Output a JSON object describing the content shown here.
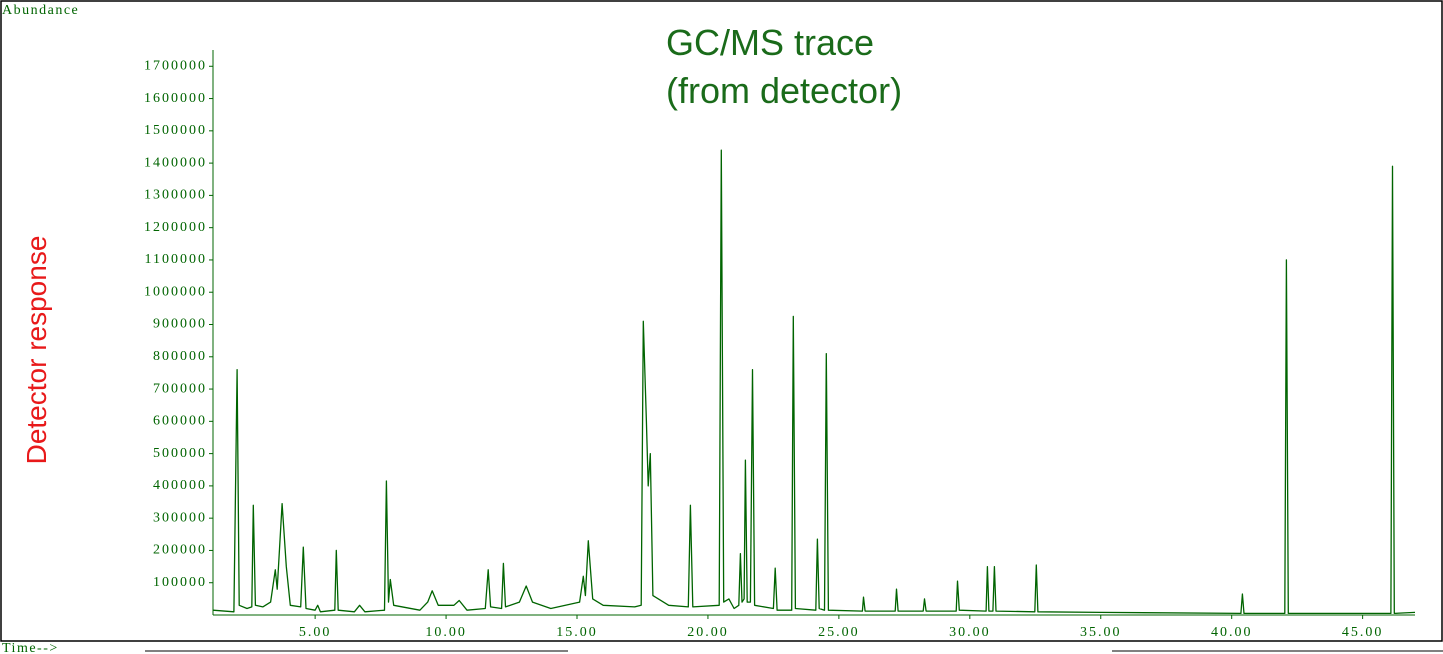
{
  "chart_data": {
    "type": "line",
    "title": [
      "GC/MS trace",
      "(from detector)"
    ],
    "ylabel": "Detector response",
    "ylabel_top": "Abundance",
    "xlabel": "Time-->",
    "x": [
      1.1,
      1.9,
      2.02,
      2.1,
      2.4,
      2.58,
      2.64,
      2.72,
      3.0,
      3.3,
      3.48,
      3.55,
      3.74,
      3.9,
      4.05,
      4.45,
      4.55,
      4.65,
      5.0,
      5.1,
      5.2,
      5.75,
      5.81,
      5.88,
      6.5,
      6.7,
      6.9,
      7.65,
      7.72,
      7.8,
      7.87,
      8.0,
      9.0,
      9.3,
      9.47,
      9.7,
      10.3,
      10.5,
      10.8,
      11.5,
      11.61,
      11.7,
      12.12,
      12.19,
      12.27,
      12.8,
      13.06,
      13.3,
      14.0,
      15.1,
      15.24,
      15.32,
      15.43,
      15.6,
      16.0,
      17.2,
      17.45,
      17.53,
      17.65,
      17.72,
      17.8,
      17.9,
      18.5,
      19.25,
      19.33,
      19.42,
      20.43,
      20.51,
      20.6,
      20.8,
      21.0,
      21.18,
      21.24,
      21.3,
      21.38,
      21.43,
      21.5,
      21.62,
      21.7,
      21.78,
      22.5,
      22.57,
      22.64,
      23.2,
      23.26,
      23.34,
      24.12,
      24.18,
      24.25,
      24.45,
      24.52,
      24.6,
      25.9,
      25.94,
      26.0,
      27.15,
      27.2,
      27.26,
      28.22,
      28.27,
      28.33,
      29.48,
      29.53,
      29.6,
      30.62,
      30.67,
      30.73,
      30.88,
      30.94,
      31.0,
      32.48,
      32.54,
      32.6,
      35.0,
      40.35,
      40.41,
      40.47,
      42.03,
      42.09,
      42.16,
      46.08,
      46.14,
      46.21,
      47.0
    ],
    "series": [
      {
        "color": "#006400",
        "values": [
          15000,
          10000,
          760000,
          30000,
          20000,
          25000,
          340000,
          30000,
          25000,
          40000,
          140000,
          80000,
          345000,
          150000,
          30000,
          25000,
          210000,
          20000,
          15000,
          30000,
          10000,
          15000,
          200000,
          15000,
          10000,
          30000,
          10000,
          15000,
          415000,
          40000,
          110000,
          30000,
          15000,
          40000,
          75000,
          30000,
          30000,
          45000,
          15000,
          20000,
          140000,
          25000,
          20000,
          160000,
          25000,
          40000,
          90000,
          40000,
          20000,
          40000,
          120000,
          60000,
          230000,
          50000,
          30000,
          25000,
          30000,
          910000,
          600000,
          400000,
          500000,
          60000,
          30000,
          25000,
          340000,
          25000,
          30000,
          1440000,
          40000,
          50000,
          20000,
          30000,
          190000,
          40000,
          50000,
          480000,
          40000,
          40000,
          760000,
          30000,
          20000,
          145000,
          15000,
          15000,
          925000,
          20000,
          15000,
          235000,
          20000,
          15000,
          810000,
          15000,
          12000,
          55000,
          12000,
          12000,
          80000,
          12000,
          12000,
          50000,
          12000,
          12000,
          105000,
          15000,
          12000,
          150000,
          12000,
          12000,
          150000,
          12000,
          10000,
          155000,
          10000,
          8000,
          5000,
          65000,
          5000,
          5000,
          1100000,
          5000,
          5000,
          1390000,
          5000,
          8000
        ]
      }
    ],
    "xlim": [
      1.1,
      47.0
    ],
    "ylim": [
      0,
      1800000
    ],
    "xticks": [
      {
        "value": 5,
        "label": "5.00"
      },
      {
        "value": 10,
        "label": "10.00"
      },
      {
        "value": 15,
        "label": "15.00"
      },
      {
        "value": 20,
        "label": "20.00"
      },
      {
        "value": 25,
        "label": "25.00"
      },
      {
        "value": 30,
        "label": "30.00"
      },
      {
        "value": 35,
        "label": "35.00"
      },
      {
        "value": 40,
        "label": "40.00"
      },
      {
        "value": 45,
        "label": "45.00"
      }
    ],
    "yticks": [
      100000,
      200000,
      300000,
      400000,
      500000,
      600000,
      700000,
      800000,
      900000,
      1000000,
      1100000,
      1200000,
      1300000,
      1400000,
      1500000,
      1600000,
      1700000
    ]
  }
}
